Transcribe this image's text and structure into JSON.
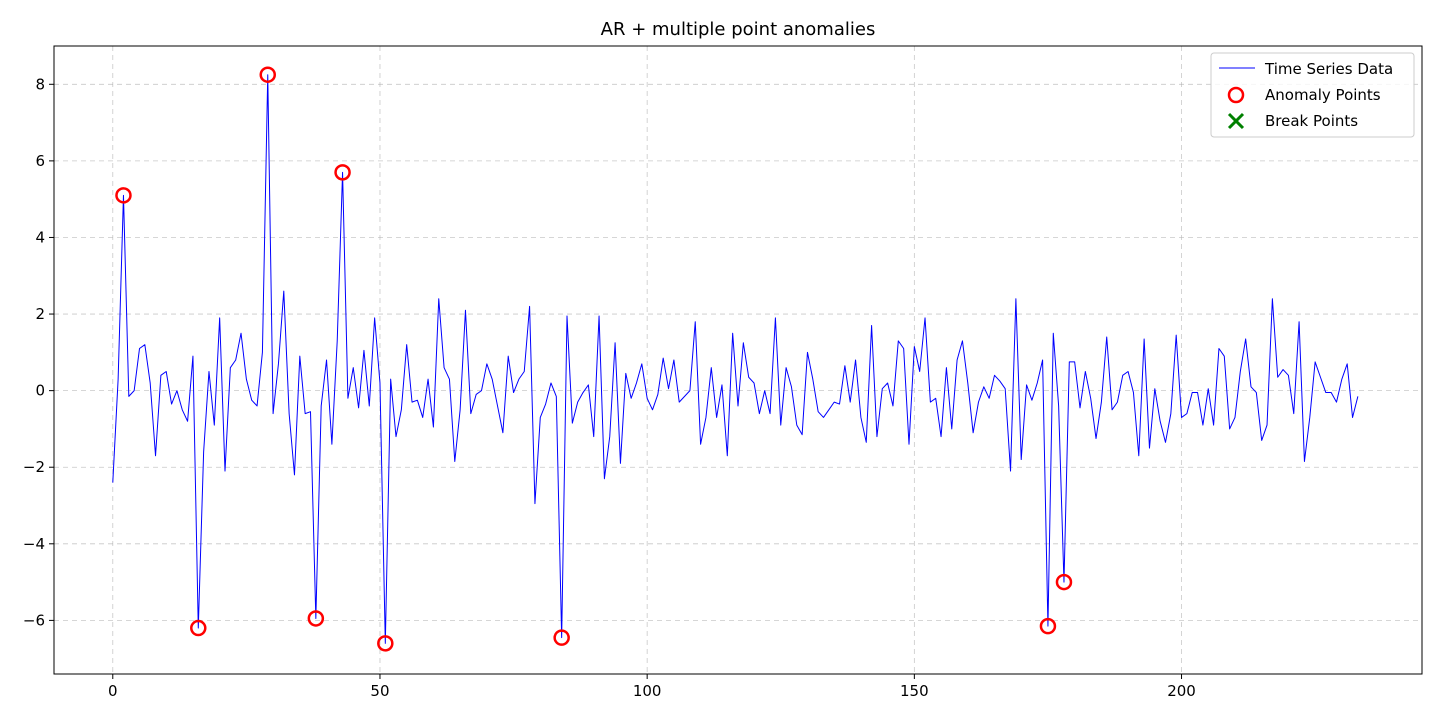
{
  "chart_data": {
    "type": "line",
    "title": "AR + multiple point anomalies",
    "xlabel": "",
    "ylabel": "",
    "xlim": [
      -11,
      245
    ],
    "ylim": [
      -7.4,
      9.0
    ],
    "xticks": [
      0,
      50,
      100,
      150,
      200
    ],
    "yticks": [
      -6,
      -4,
      -2,
      0,
      2,
      4,
      6,
      8
    ],
    "grid": true,
    "legend": {
      "placement": "top-right",
      "entries": [
        "Time Series Data",
        "Anomaly Points",
        "Break Points"
      ]
    },
    "series": [
      {
        "name": "Time Series Data",
        "kind": "line",
        "color": "#0000ff",
        "x_start": 0,
        "values": [
          -2.4,
          0.3,
          5.1,
          -0.15,
          0.0,
          1.1,
          1.2,
          0.2,
          -1.7,
          0.4,
          0.5,
          -0.35,
          0.0,
          -0.5,
          -0.8,
          0.9,
          -6.2,
          -1.6,
          0.5,
          -0.9,
          1.9,
          -2.1,
          0.6,
          0.8,
          1.5,
          0.3,
          -0.25,
          -0.4,
          1.0,
          8.25,
          -0.6,
          0.7,
          2.6,
          -0.6,
          -2.2,
          0.9,
          -0.6,
          -0.55,
          -5.95,
          -0.4,
          0.8,
          -1.4,
          1.3,
          5.7,
          -0.2,
          0.6,
          -0.45,
          1.05,
          -0.4,
          1.9,
          0.2,
          -6.6,
          0.3,
          -1.2,
          -0.5,
          1.2,
          -0.3,
          -0.25,
          -0.7,
          0.3,
          -0.95,
          2.4,
          0.6,
          0.3,
          -1.85,
          -0.5,
          2.1,
          -0.6,
          -0.1,
          0.0,
          0.7,
          0.3,
          -0.4,
          -1.1,
          0.9,
          -0.05,
          0.3,
          0.5,
          2.2,
          -2.95,
          -0.7,
          -0.35,
          0.2,
          -0.15,
          -6.45,
          1.95,
          -0.85,
          -0.3,
          -0.05,
          0.15,
          -1.2,
          1.95,
          -2.3,
          -1.2,
          1.25,
          -1.9,
          0.45,
          -0.2,
          0.2,
          0.7,
          -0.2,
          -0.5,
          -0.1,
          0.85,
          0.05,
          0.8,
          -0.3,
          -0.15,
          0.0,
          1.8,
          -1.4,
          -0.7,
          0.6,
          -0.7,
          0.15,
          -1.7,
          1.5,
          -0.4,
          1.25,
          0.35,
          0.2,
          -0.6,
          0.0,
          -0.6,
          1.9,
          -0.9,
          0.6,
          0.1,
          -0.9,
          -1.15,
          1.0,
          0.3,
          -0.55,
          -0.7,
          -0.5,
          -0.3,
          -0.35,
          0.65,
          -0.3,
          0.8,
          -0.7,
          -1.35,
          1.7,
          -1.2,
          0.05,
          0.2,
          -0.4,
          1.3,
          1.1,
          -1.4,
          1.15,
          0.5,
          1.9,
          -0.3,
          -0.2,
          -1.2,
          0.6,
          -1.0,
          0.8,
          1.3,
          0.2,
          -1.1,
          -0.3,
          0.1,
          -0.2,
          0.4,
          0.25,
          0.05,
          -2.1,
          2.4,
          -1.8,
          0.15,
          -0.25,
          0.2,
          0.8,
          -6.15,
          1.5,
          -0.4,
          -5.0,
          0.75,
          0.75,
          -0.45,
          0.5,
          -0.2,
          -1.25,
          -0.3,
          1.4,
          -0.5,
          -0.3,
          0.4,
          0.5,
          -0.05,
          -1.7,
          1.35,
          -1.5,
          0.05,
          -0.8,
          -1.35,
          -0.6,
          1.45,
          -0.7,
          -0.6,
          -0.05,
          -0.05,
          -0.9,
          0.05,
          -0.9,
          1.1,
          0.9,
          -1.0,
          -0.7,
          0.5,
          1.35,
          0.1,
          -0.05,
          -1.3,
          -0.9,
          2.4,
          0.35,
          0.55,
          0.4,
          -0.6,
          1.8,
          -1.85,
          -0.7,
          0.75,
          0.35,
          -0.05,
          -0.05,
          -0.3,
          0.3,
          0.7,
          -0.7,
          -0.15
        ]
      },
      {
        "name": "Anomaly Points",
        "kind": "scatter",
        "marker": "hollow-circle",
        "color": "#ff0000",
        "points": [
          {
            "x": 2,
            "y": 5.1
          },
          {
            "x": 16,
            "y": -6.2
          },
          {
            "x": 29,
            "y": 8.25
          },
          {
            "x": 38,
            "y": -5.95
          },
          {
            "x": 43,
            "y": 5.7
          },
          {
            "x": 51,
            "y": -6.6
          },
          {
            "x": 84,
            "y": -6.45
          },
          {
            "x": 175,
            "y": -6.15
          },
          {
            "x": 178,
            "y": -5.0
          }
        ]
      },
      {
        "name": "Break Points",
        "kind": "scatter",
        "marker": "x",
        "color": "#008000",
        "points": []
      }
    ]
  }
}
